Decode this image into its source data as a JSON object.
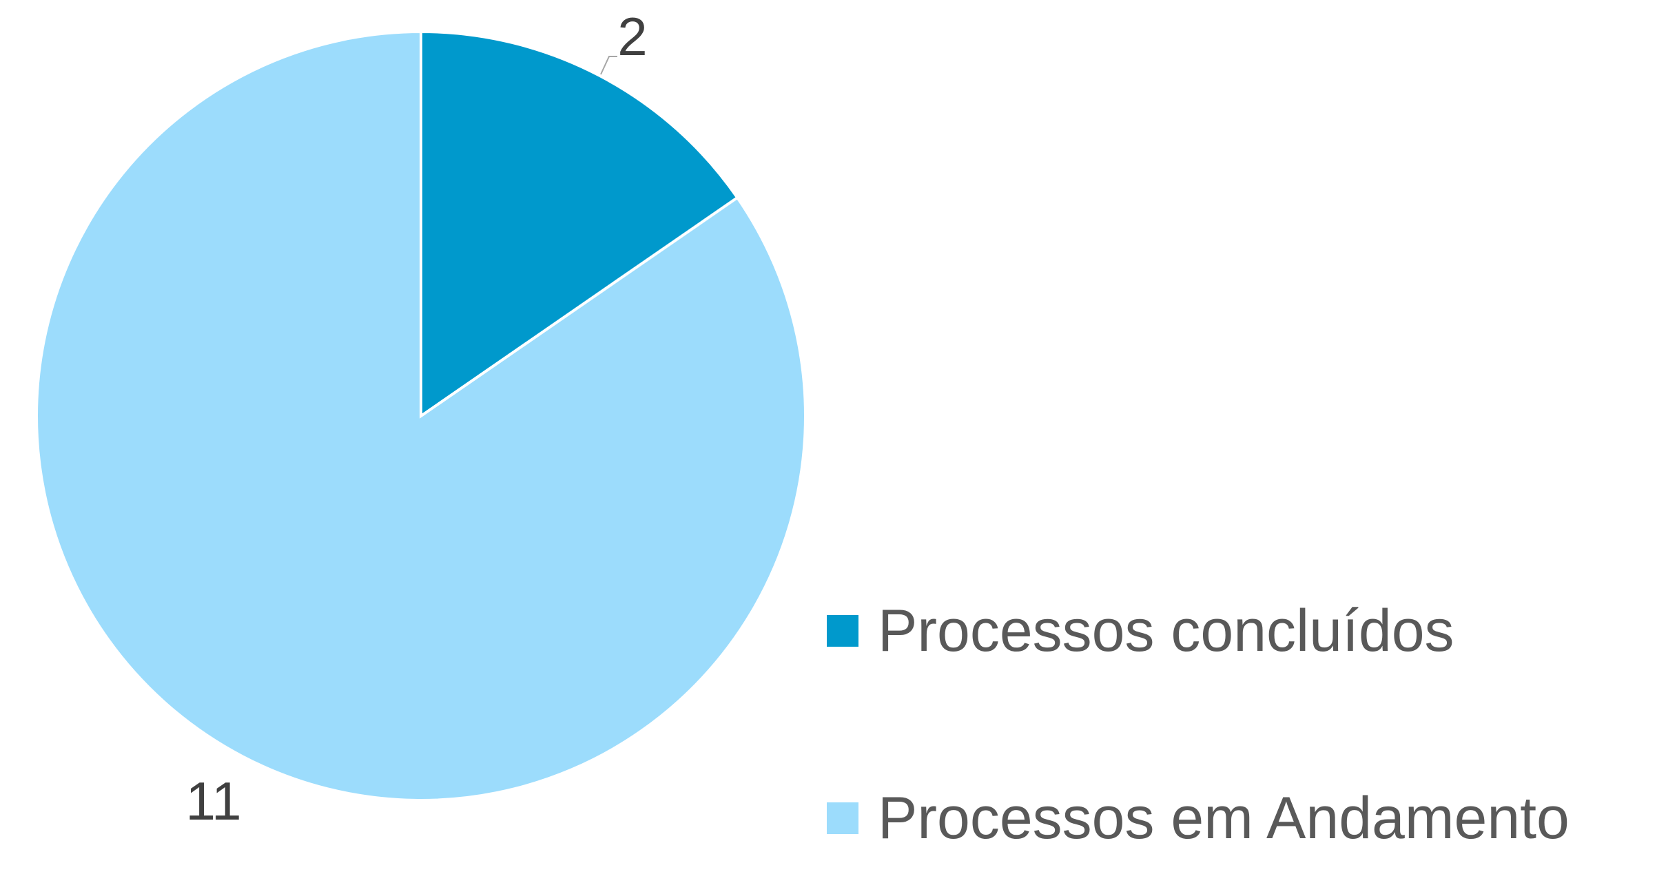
{
  "chart_data": {
    "type": "pie",
    "categories": [
      "Processos concluídos",
      "Processos em Andamento"
    ],
    "values": [
      2,
      11
    ],
    "colors": [
      "#0099CC",
      "#9CDCFC"
    ],
    "data_labels": [
      "2",
      "11"
    ],
    "legend": {
      "position": "right-bottom",
      "entries": [
        "Processos concluídos",
        "Processos em Andamento"
      ]
    },
    "start_angle": "12 o'clock",
    "direction": "clockwise"
  }
}
